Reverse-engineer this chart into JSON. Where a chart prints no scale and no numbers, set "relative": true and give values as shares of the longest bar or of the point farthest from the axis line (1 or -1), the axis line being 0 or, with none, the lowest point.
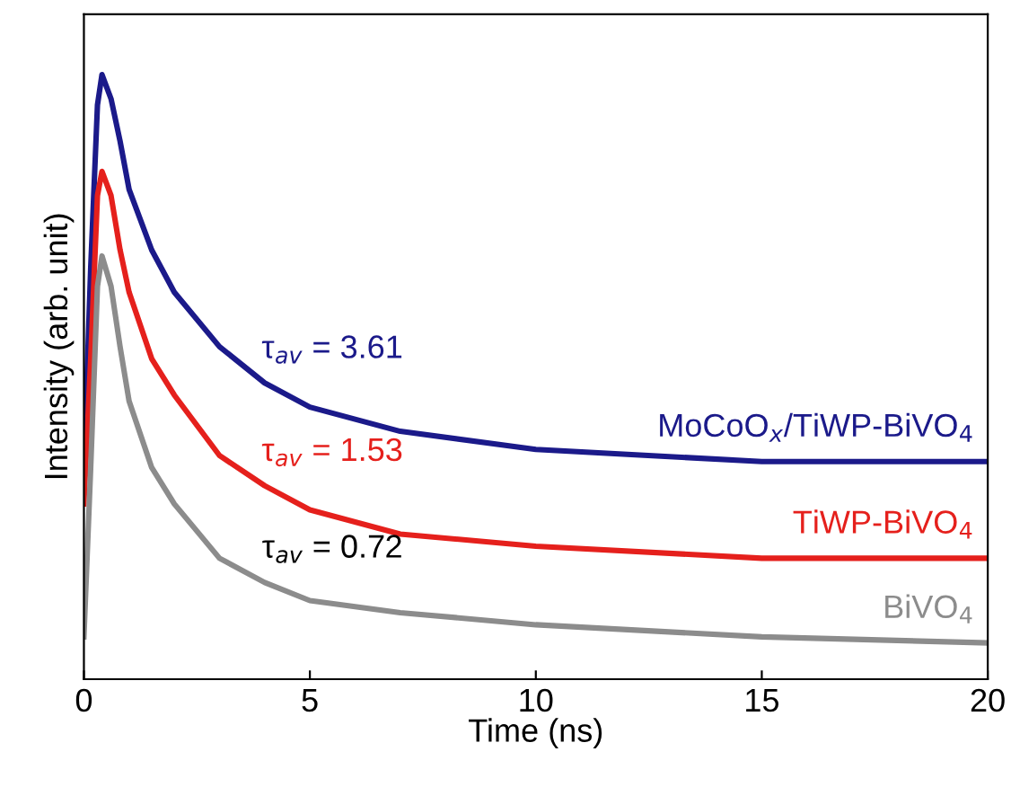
{
  "chart_data": {
    "type": "line",
    "relative": true,
    "xlabel": "Time (ns)",
    "ylabel": "Intensity (arb. unit)",
    "x": [
      0,
      0.15,
      0.3,
      0.4,
      0.6,
      0.8,
      1.0,
      1.5,
      2,
      3,
      4,
      5,
      7,
      10,
      15,
      20
    ],
    "xlim": [
      0,
      20
    ],
    "xticks": [
      0,
      5,
      10,
      15,
      20
    ],
    "tick_labels": "x",
    "grid": false,
    "legend": false,
    "marker": "none",
    "line_style": "solid",
    "series": [
      {
        "name": "MoCoO$_{x}$/TiWP-BiVO$_{4}$",
        "color": "#1b1a8a",
        "values": [
          0.35,
          0.68,
          0.95,
          1,
          0.96,
          0.89,
          0.81,
          0.71,
          0.64,
          0.55,
          0.49,
          0.45,
          0.41,
          0.38,
          0.36,
          0.36
        ]
      },
      {
        "name": "TiWP-BiVO$_{4}$",
        "color": "#e5201c",
        "values": [
          0.29,
          0.53,
          0.8,
          0.84,
          0.8,
          0.71,
          0.64,
          0.53,
          0.47,
          0.37,
          0.32,
          0.28,
          0.24,
          0.22,
          0.2,
          0.2
        ]
      },
      {
        "name": "BiVO$_{4}$",
        "color": "#8c8c8c",
        "values": [
          0.07,
          0.35,
          0.65,
          0.7,
          0.65,
          0.55,
          0.46,
          0.35,
          0.29,
          0.2,
          0.16,
          0.13,
          0.11,
          0.09,
          0.07,
          0.06
        ]
      }
    ],
    "annotations": [
      "τ$_{av}$ = 3.61",
      "τ$_{av}$ = 1.53",
      "τ$_{av}$ = 0.72"
    ]
  }
}
